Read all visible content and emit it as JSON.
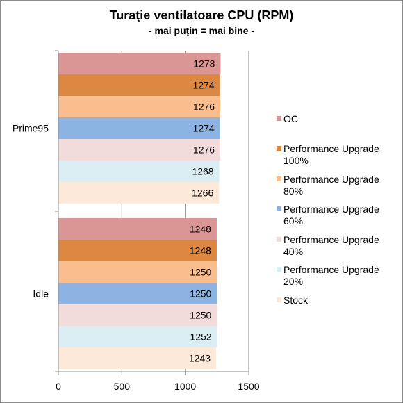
{
  "chart_data": {
    "type": "bar",
    "orientation": "horizontal",
    "title": "Turaţie ventilatoare CPU (RPM)",
    "subtitle": "- mai puţin = mai bine -",
    "categories": [
      "Prime95",
      "Idle"
    ],
    "series": [
      {
        "name": "OC",
        "color": "#d99694",
        "values": [
          1278,
          1248
        ]
      },
      {
        "name": "Performance Upgrade 100%",
        "color": "#dc8842",
        "values": [
          1274,
          1248
        ]
      },
      {
        "name": "Performance Upgrade 80%",
        "color": "#f9bd8e",
        "values": [
          1276,
          1250
        ]
      },
      {
        "name": "Performance Upgrade 60%",
        "color": "#8db3e2",
        "values": [
          1274,
          1250
        ]
      },
      {
        "name": "Performance Upgrade 40%",
        "color": "#f2dcdb",
        "values": [
          1276,
          1250
        ]
      },
      {
        "name": "Performance Upgrade 20%",
        "color": "#dbeef4",
        "values": [
          1268,
          1252
        ]
      },
      {
        "name": "Stock",
        "color": "#fde9d9",
        "values": [
          1266,
          1243
        ]
      }
    ],
    "xlim": [
      0,
      1500
    ],
    "xticks": [
      0,
      500,
      1000,
      1500
    ],
    "grid": true,
    "legend_position": "right"
  }
}
